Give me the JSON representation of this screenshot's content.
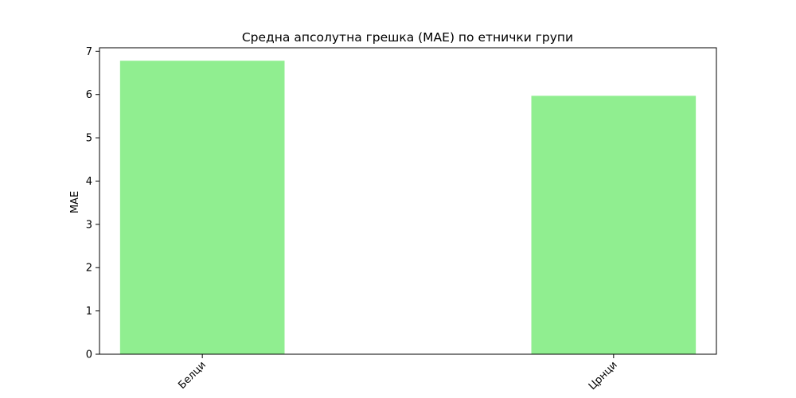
{
  "chart_data": {
    "type": "bar",
    "title": "Средна апсолутна грешка (MAE) по етнички групи",
    "xlabel": "",
    "ylabel": "MAE",
    "categories": [
      "Белци",
      "Црнци"
    ],
    "values": [
      6.78,
      5.97
    ],
    "ylim": [
      0,
      7.08
    ],
    "yticks": [
      "0",
      "1",
      "2",
      "3",
      "4",
      "5",
      "6",
      "7"
    ],
    "bar_color": "#90ee90",
    "grid": false,
    "legend": "none",
    "xtick_rotation": "45"
  }
}
